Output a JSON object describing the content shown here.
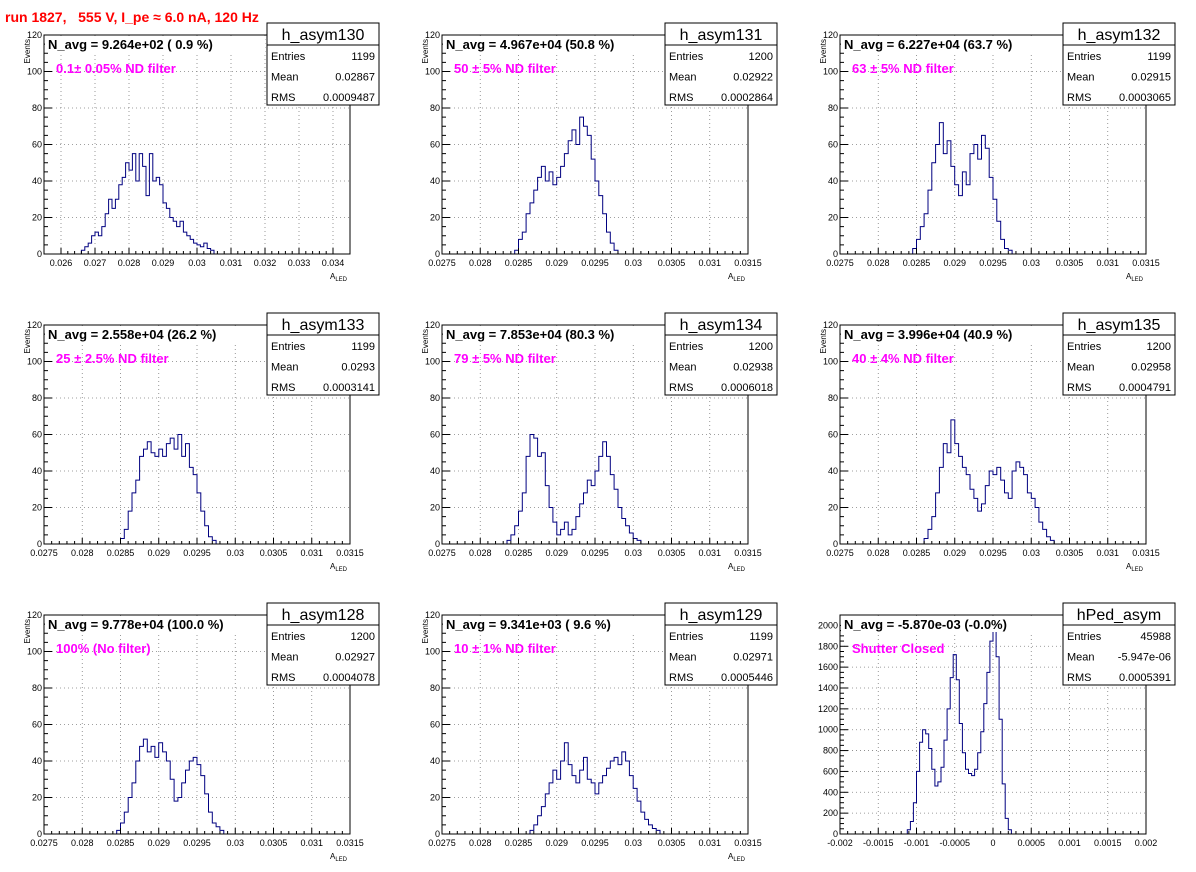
{
  "header": {
    "title": "run 1827,   555 V, I_pe ≈ 6.0 nA, 120 Hz"
  },
  "colors": {
    "histogram": "#000080",
    "annotation": "#ff00ff",
    "header": "#ff0000",
    "grid": "#808080"
  },
  "chart_data": [
    {
      "type": "bar",
      "name": "h_asym130",
      "nlabel": "N_avg = 9.264e+02 ( 0.9 %)",
      "annotation": "0.1± 0.05% ND filter",
      "stats": {
        "Entries": "1199",
        "Mean": "0.02867",
        "RMS": "0.0009487"
      },
      "xlabel": "A_LED",
      "ylabel": "Events",
      "xlim": [
        0.0255,
        0.0345
      ],
      "ylim": [
        0,
        120
      ],
      "xticks": [
        0.026,
        0.027,
        0.028,
        0.029,
        0.03,
        0.031,
        0.032,
        0.033,
        0.034
      ],
      "xtick_labels": [
        "0.026",
        "0.027",
        "0.028",
        "0.029",
        "0.03",
        "0.031",
        "0.032",
        "0.033",
        "0.034"
      ],
      "yticks": [
        0,
        20,
        40,
        60,
        80,
        100,
        120
      ],
      "bin_start": 0.0266,
      "bin_width": 0.0001,
      "values": [
        2,
        4,
        6,
        10,
        12,
        10,
        15,
        22,
        30,
        25,
        30,
        38,
        42,
        50,
        46,
        55,
        40,
        55,
        48,
        32,
        55,
        40,
        42,
        38,
        28,
        25,
        20,
        18,
        15,
        18,
        12,
        10,
        8,
        6,
        5,
        4,
        6,
        3,
        2
      ]
    },
    {
      "type": "bar",
      "name": "h_asym131",
      "nlabel": "N_avg = 4.967e+04 (50.8 %)",
      "annotation": "50 ± 5% ND filter",
      "stats": {
        "Entries": "1200",
        "Mean": "0.02922",
        "RMS": "0.0002864"
      },
      "xlabel": "A_LED",
      "ylabel": "Events",
      "xlim": [
        0.0275,
        0.0315
      ],
      "ylim": [
        0,
        120
      ],
      "xticks": [
        0.0275,
        0.028,
        0.0285,
        0.029,
        0.0295,
        0.03,
        0.0305,
        0.031,
        0.0315
      ],
      "xtick_labels": [
        "0.0275",
        "0.028",
        "0.0285",
        "0.029",
        "0.0295",
        "0.03",
        "0.0305",
        "0.031",
        "0.0315"
      ],
      "yticks": [
        0,
        20,
        40,
        60,
        80,
        100,
        120
      ],
      "bin_start": 0.02845,
      "bin_width": 5e-05,
      "values": [
        2,
        8,
        12,
        22,
        28,
        35,
        42,
        48,
        40,
        45,
        38,
        42,
        48,
        55,
        62,
        68,
        60,
        75,
        70,
        65,
        52,
        40,
        32,
        22,
        12,
        6,
        2
      ]
    },
    {
      "type": "bar",
      "name": "h_asym132",
      "nlabel": "N_avg = 6.227e+04 (63.7 %)",
      "annotation": "63 ± 5% ND filter",
      "stats": {
        "Entries": "1199",
        "Mean": "0.02915",
        "RMS": "0.0003065"
      },
      "xlabel": "A_LED",
      "ylabel": "Events",
      "xlim": [
        0.0275,
        0.0315
      ],
      "ylim": [
        0,
        120
      ],
      "xticks": [
        0.0275,
        0.028,
        0.0285,
        0.029,
        0.0295,
        0.03,
        0.0305,
        0.031,
        0.0315
      ],
      "xtick_labels": [
        "0.0275",
        "0.028",
        "0.0285",
        "0.029",
        "0.0295",
        "0.03",
        "0.0305",
        "0.031",
        "0.0315"
      ],
      "yticks": [
        0,
        20,
        40,
        60,
        80,
        100,
        120
      ],
      "bin_start": 0.02845,
      "bin_width": 5e-05,
      "values": [
        3,
        8,
        15,
        22,
        35,
        50,
        60,
        72,
        55,
        62,
        48,
        38,
        32,
        45,
        38,
        55,
        60,
        52,
        65,
        58,
        42,
        30,
        18,
        8,
        3,
        2
      ]
    },
    {
      "type": "bar",
      "name": "h_asym133",
      "nlabel": "N_avg = 2.558e+04 (26.2 %)",
      "annotation": "25 ± 2.5% ND filter",
      "stats": {
        "Entries": "1199",
        "Mean": "0.0293",
        "RMS": "0.0003141"
      },
      "xlabel": "A_LED",
      "ylabel": "Events",
      "xlim": [
        0.0275,
        0.0315
      ],
      "ylim": [
        0,
        120
      ],
      "xticks": [
        0.0275,
        0.028,
        0.0285,
        0.029,
        0.0295,
        0.03,
        0.0305,
        0.031,
        0.0315
      ],
      "xtick_labels": [
        "0.0275",
        "0.028",
        "0.0285",
        "0.029",
        "0.0295",
        "0.03",
        "0.0305",
        "0.031",
        "0.0315"
      ],
      "yticks": [
        0,
        20,
        40,
        60,
        80,
        100,
        120
      ],
      "bin_start": 0.0285,
      "bin_width": 5e-05,
      "values": [
        3,
        8,
        18,
        28,
        35,
        48,
        52,
        56,
        50,
        48,
        52,
        48,
        55,
        58,
        52,
        60,
        48,
        55,
        42,
        38,
        28,
        18,
        10,
        4,
        2
      ]
    },
    {
      "type": "bar",
      "name": "h_asym134",
      "nlabel": "N_avg = 7.853e+04 (80.3 %)",
      "annotation": "79 ± 5% ND filter",
      "stats": {
        "Entries": "1200",
        "Mean": "0.02938",
        "RMS": "0.0006018"
      },
      "xlabel": "A_LED",
      "ylabel": "Events",
      "xlim": [
        0.0275,
        0.0315
      ],
      "ylim": [
        0,
        120
      ],
      "xticks": [
        0.0275,
        0.028,
        0.0285,
        0.029,
        0.0295,
        0.03,
        0.0305,
        0.031,
        0.0315
      ],
      "xtick_labels": [
        "0.0275",
        "0.028",
        "0.0285",
        "0.029",
        "0.0295",
        "0.03",
        "0.0305",
        "0.031",
        "0.0315"
      ],
      "yticks": [
        0,
        20,
        40,
        60,
        80,
        100,
        120
      ],
      "bin_start": 0.02835,
      "bin_width": 5e-05,
      "values": [
        2,
        5,
        10,
        18,
        28,
        48,
        60,
        58,
        48,
        50,
        32,
        20,
        12,
        5,
        8,
        12,
        5,
        8,
        15,
        22,
        28,
        35,
        32,
        40,
        48,
        56,
        48,
        38,
        30,
        20,
        14,
        10,
        6,
        3,
        2
      ]
    },
    {
      "type": "bar",
      "name": "h_asym135",
      "nlabel": "N_avg = 3.996e+04 (40.9 %)",
      "annotation": "40 ± 4% ND filter",
      "stats": {
        "Entries": "1200",
        "Mean": "0.02958",
        "RMS": "0.0004791"
      },
      "xlabel": "A_LED",
      "ylabel": "Events",
      "xlim": [
        0.0275,
        0.0315
      ],
      "ylim": [
        0,
        120
      ],
      "xticks": [
        0.0275,
        0.028,
        0.0285,
        0.029,
        0.0295,
        0.03,
        0.0305,
        0.031,
        0.0315
      ],
      "xtick_labels": [
        "0.0275",
        "0.028",
        "0.0285",
        "0.029",
        "0.0295",
        "0.03",
        "0.0305",
        "0.031",
        "0.0315"
      ],
      "yticks": [
        0,
        20,
        40,
        60,
        80,
        100,
        120
      ],
      "bin_start": 0.0286,
      "bin_width": 5e-05,
      "values": [
        3,
        8,
        15,
        28,
        42,
        55,
        50,
        68,
        55,
        48,
        42,
        38,
        30,
        25,
        18,
        22,
        32,
        40,
        38,
        42,
        35,
        28,
        25,
        40,
        45,
        42,
        38,
        28,
        25,
        20,
        12,
        8,
        4,
        2
      ]
    },
    {
      "type": "bar",
      "name": "h_asym128",
      "nlabel": "N_avg = 9.778e+04 (100.0 %)",
      "annotation": "100% (No filter)",
      "stats": {
        "Entries": "1200",
        "Mean": "0.02927",
        "RMS": "0.0004078"
      },
      "xlabel": "A_LED",
      "ylabel": "Events",
      "xlim": [
        0.0275,
        0.0315
      ],
      "ylim": [
        0,
        120
      ],
      "xticks": [
        0.0275,
        0.028,
        0.0285,
        0.029,
        0.0295,
        0.03,
        0.0305,
        0.031,
        0.0315
      ],
      "xtick_labels": [
        "0.0275",
        "0.028",
        "0.0285",
        "0.029",
        "0.0295",
        "0.03",
        "0.0305",
        "0.031",
        "0.0315"
      ],
      "yticks": [
        0,
        20,
        40,
        60,
        80,
        100,
        120
      ],
      "bin_start": 0.02845,
      "bin_width": 5e-05,
      "values": [
        2,
        6,
        12,
        20,
        28,
        40,
        48,
        52,
        45,
        48,
        42,
        50,
        45,
        40,
        30,
        18,
        20,
        28,
        35,
        40,
        42,
        38,
        32,
        22,
        12,
        6,
        4,
        2
      ]
    },
    {
      "type": "bar",
      "name": "h_asym129",
      "nlabel": "N_avg = 9.341e+03 ( 9.6 %)",
      "annotation": "10 ± 1% ND filter",
      "stats": {
        "Entries": "1199",
        "Mean": "0.02971",
        "RMS": "0.0005446"
      },
      "xlabel": "A_LED",
      "ylabel": "Events",
      "xlim": [
        0.0275,
        0.0315
      ],
      "ylim": [
        0,
        120
      ],
      "xticks": [
        0.0275,
        0.028,
        0.0285,
        0.029,
        0.0295,
        0.03,
        0.0305,
        0.031,
        0.0315
      ],
      "xtick_labels": [
        "0.0275",
        "0.028",
        "0.0285",
        "0.029",
        "0.0295",
        "0.03",
        "0.0305",
        "0.031",
        "0.0315"
      ],
      "yticks": [
        0,
        20,
        40,
        60,
        80,
        100,
        120
      ],
      "bin_start": 0.02865,
      "bin_width": 5e-05,
      "values": [
        2,
        5,
        10,
        15,
        22,
        28,
        35,
        30,
        40,
        50,
        38,
        32,
        28,
        35,
        42,
        30,
        28,
        22,
        28,
        32,
        36,
        40,
        42,
        38,
        45,
        40,
        32,
        25,
        18,
        12,
        8,
        5,
        3,
        2
      ]
    },
    {
      "type": "bar",
      "name": "hPed_asym",
      "nlabel": "N_avg = -5.870e-03 (-0.0%)",
      "annotation": "Shutter Closed",
      "stats": {
        "Entries": "45988",
        "Mean": "-5.947e-06",
        "RMS": "0.0005391"
      },
      "xlabel": "",
      "ylabel": "",
      "xlim": [
        -0.002,
        0.002
      ],
      "ylim": [
        0,
        2100
      ],
      "xticks": [
        -0.002,
        -0.0015,
        -0.001,
        -0.0005,
        0,
        0.0005,
        0.001,
        0.0015,
        0.002
      ],
      "xtick_labels": [
        "-0.002",
        "-0.0015",
        "-0.001",
        "-0.0005",
        "0",
        "0.0005",
        "0.001",
        "0.0015",
        "0.002"
      ],
      "yticks": [
        0,
        200,
        400,
        600,
        800,
        1000,
        1200,
        1400,
        1600,
        1800,
        2000
      ],
      "bin_start": -0.00112,
      "bin_width": 4e-05,
      "values": [
        40,
        120,
        300,
        600,
        880,
        1000,
        960,
        820,
        620,
        460,
        500,
        640,
        900,
        1200,
        1500,
        1720,
        1480,
        1060,
        780,
        620,
        580,
        560,
        620,
        780,
        980,
        1250,
        1550,
        1850,
        2000,
        1700,
        1100,
        480,
        150,
        40
      ]
    }
  ]
}
